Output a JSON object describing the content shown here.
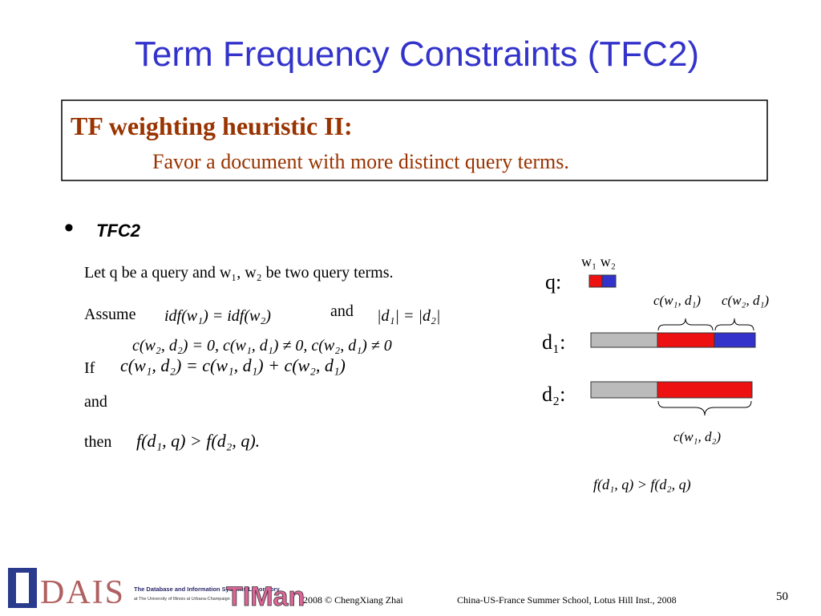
{
  "title": "Term Frequency Constraints (TFC2)",
  "box": {
    "heading": "TF weighting heuristic II:",
    "text": "Favor a document with more distinct query terms."
  },
  "bullet": {
    "label": "TFC2",
    "lines": [
      "Let q be a query and w₁, w₂ be two query terms.",
      "Assume",
      "idf(w₁) = idf(w₂)",
      "and",
      "|d₁| = |d₂|",
      "c(w₂, d₂) = 0, c(w₁, d₁) ≠ 0, c(w₂, d₁) ≠ 0",
      "If",
      "c(w₁, d₂) = c(w₁, d₁) + c(w₂, d₁)",
      "and",
      "then",
      "f(d₁, q) > f(d₂, q)."
    ]
  },
  "diagram": {
    "terms": "w₁ w₂",
    "q_label": "q:",
    "d1_label": "d₁:",
    "d2_label": "d₂:",
    "c_w1_d1": "c(w₁, d₁)",
    "c_w2_d1": "c(w₂, d₁)",
    "c_w1_d2": "c(w₁, d₂)",
    "result": "f(d₁, q) > f(d₂, q)"
  },
  "footer": {
    "lab_logo": "DAIS",
    "lab_name": "The Database and Information Systems Laboratory",
    "lab_sub": "at The University of Illinois at Urbana-Champaign",
    "timan": "TIMan",
    "copyright": "2008  © ChengXiang Zhai",
    "event": "China-US-France Summer School, Lotus Hill Inst., 2008",
    "page": "50"
  }
}
